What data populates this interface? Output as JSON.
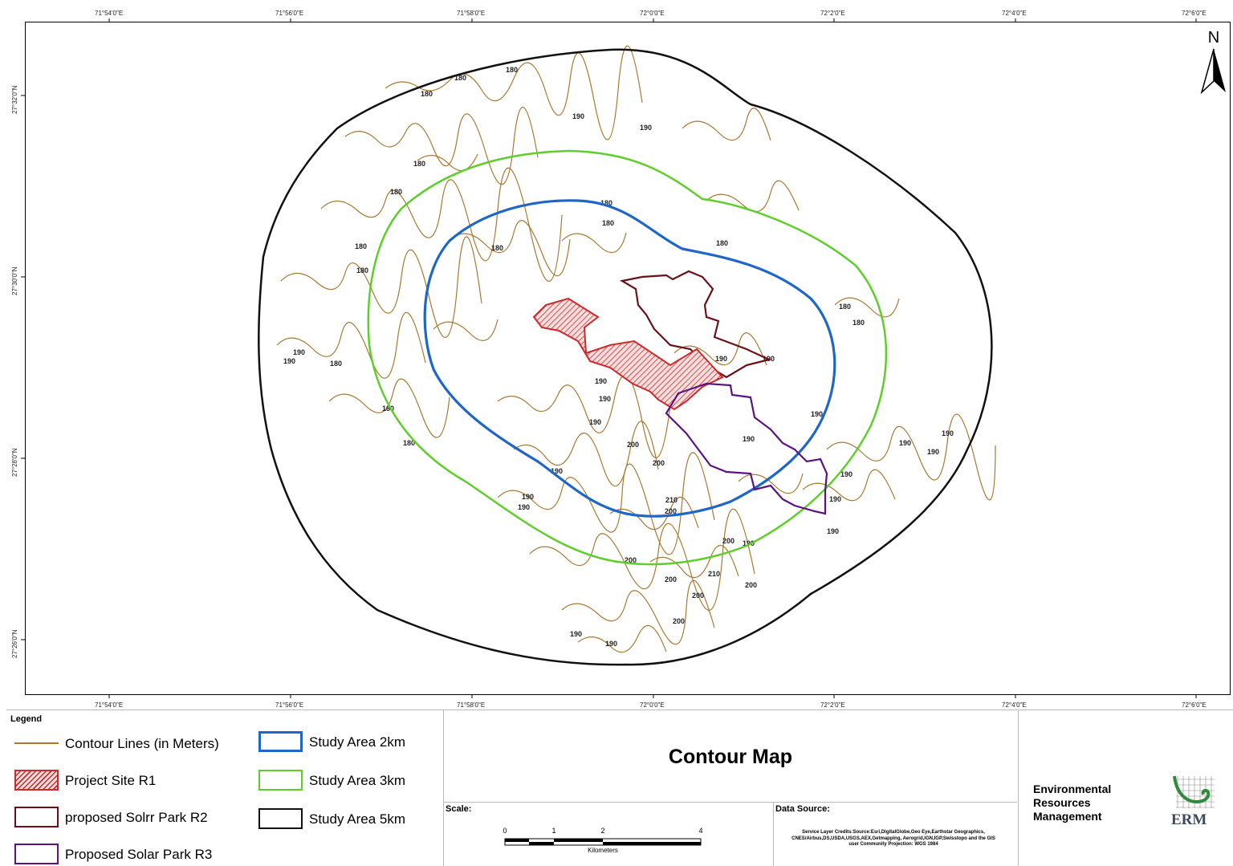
{
  "map": {
    "north_label": "N",
    "top_ticks": [
      "71°54'0\"E",
      "71°56'0\"E",
      "71°58'0\"E",
      "72°0'0\"E",
      "72°2'0\"E",
      "72°4'0\"E",
      "72°6'0\"E"
    ],
    "bottom_ticks": [
      "71°54'0\"E",
      "71°56'0\"E",
      "71°58'0\"E",
      "72°0'0\"E",
      "72°2'0\"E",
      "72°4'0\"E",
      "72°6'0\"E"
    ],
    "left_ticks": [
      "27°32'0\"N",
      "27°30'0\"N",
      "27°28'0\"N",
      "27°26'0\"N"
    ],
    "contour_labels": [
      "180",
      "190",
      "200",
      "210"
    ],
    "colors": {
      "contour": "#a8782f",
      "project_site_r1": "#cc2a2a",
      "solar_park_r2": "#6b1018",
      "solar_park_r3": "#5a1380",
      "study_area_2km": "#1f66c9",
      "study_area_3km": "#5fce2a",
      "study_area_5km": "#111111"
    }
  },
  "legend": {
    "title": "Legend",
    "items": [
      {
        "label": "Contour Lines (in Meters)"
      },
      {
        "label": "Project Site R1"
      },
      {
        "label": "proposed Solrr Park R2"
      },
      {
        "label": "Proposed Solar Park R3"
      },
      {
        "label": "Study Area 2km"
      },
      {
        "label": "Study Area 3km"
      },
      {
        "label": "Study Area 5km"
      }
    ]
  },
  "title_block": {
    "title": "Contour Map"
  },
  "scale": {
    "label": "Scale:",
    "ticks": [
      "0",
      "1",
      "2",
      "4"
    ],
    "unit": "Kilometers"
  },
  "data_source": {
    "label": "Data Source:",
    "credits": "Service Layer Credits:Source:Esri,DigitalGlobe,Geo Eye,Earthstar Geographics, CNES/Airbus,DS,USDA,USGS,AEX,Getmapping, Aerogrid,IGN,IGP,Swisstopo and the GIS user Community Projection: WGS 1984"
  },
  "organization": {
    "line1": "Environmental",
    "line2": "Resources",
    "line3": "Management",
    "logo_text": "ERM"
  }
}
